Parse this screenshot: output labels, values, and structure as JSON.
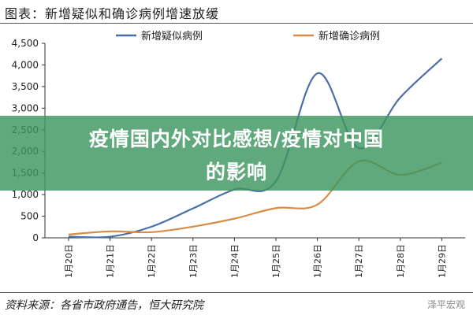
{
  "header": {
    "title": "图表：新增疑似和确诊病例增速放缓"
  },
  "chart_data": {
    "type": "line",
    "title": "图表：新增疑似和确诊病例增速放缓",
    "categories": [
      "1月20日",
      "1月21日",
      "1月22日",
      "1月23日",
      "1月24日",
      "1月25日",
      "1月26日",
      "1月27日",
      "1月28日",
      "1月29日"
    ],
    "ylim": [
      0,
      4500
    ],
    "yticks": [
      "0",
      "500",
      "1,000",
      "1,500",
      "2,000",
      "2,500",
      "3,000",
      "3,500",
      "4,000",
      "4,500"
    ],
    "grid": false,
    "legend_position": "top",
    "series": [
      {
        "name": "新增疑似病例",
        "color": "#4a6fa8",
        "values": [
          27,
          26,
          257,
          680,
          1118,
          1309,
          3806,
          2077,
          3248,
          4148
        ]
      },
      {
        "name": "新增确诊病例",
        "color": "#d98c4a",
        "values": [
          77,
          149,
          131,
          259,
          444,
          688,
          769,
          1771,
          1459,
          1737
        ]
      }
    ]
  },
  "banner": {
    "line1": "疫情国内外对比感想/疫情对中国",
    "line2": "的影响"
  },
  "footer": {
    "source": "资料来源：各省市政府通告，恒大研究院",
    "watermark": "泽平宏观"
  }
}
